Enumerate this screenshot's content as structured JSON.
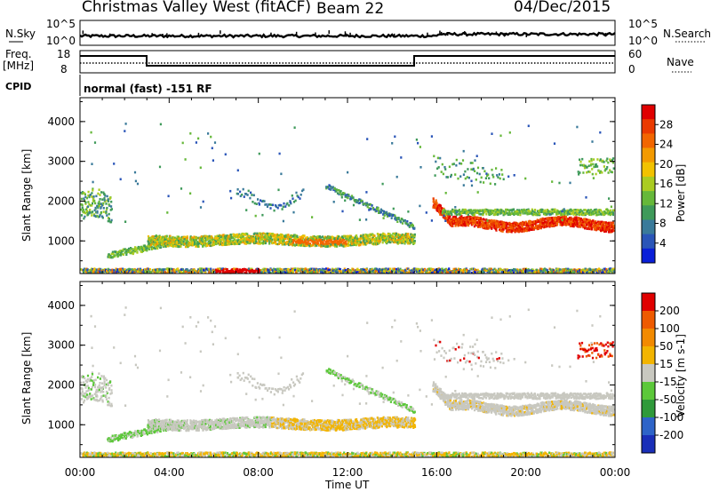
{
  "header": {
    "station": "Christmas Valley West (fitACF)",
    "beam": "Beam 22",
    "date": "04/Dec/2015"
  },
  "top_panels": {
    "nsky_label": "N.Sky",
    "nsearch_label": "N.Search",
    "nsky_ticks": [
      "10^5",
      "10^0"
    ],
    "nsearch_ticks": [
      "10^5",
      "10^0"
    ],
    "freq_label": "Freq.",
    "freq_unit": "[MHz]",
    "freq_ticks": [
      "18",
      "8"
    ],
    "nave_label": "Nave",
    "nave_ticks": [
      "60",
      "0"
    ],
    "cpid_label": "CPID",
    "cpid_text": "normal (fast) -151 RF"
  },
  "chart_data": [
    {
      "type": "heatmap",
      "panel": "power",
      "ylabel": "Slant Range [km]",
      "yticks": [
        "4000",
        "3000",
        "2000",
        "1000"
      ],
      "ylim": [
        180,
        4600
      ],
      "xlim": [
        0,
        24
      ],
      "colorbar": {
        "label": "Power [dB]",
        "ticks": [
          "28",
          "24",
          "20",
          "16",
          "12",
          "8",
          "4"
        ],
        "colors": [
          "#0a1fd8",
          "#2a55b8",
          "#3a7a9a",
          "#3f9a5a",
          "#66b83a",
          "#aacc22",
          "#f2c200",
          "#f39a00",
          "#f26600",
          "#ea3a00",
          "#e00000"
        ]
      }
    },
    {
      "type": "heatmap",
      "panel": "velocity",
      "ylabel": "Slant Range [km]",
      "yticks": [
        "4000",
        "3000",
        "2000",
        "1000"
      ],
      "ylim": [
        180,
        4600
      ],
      "xlim": [
        0,
        24
      ],
      "xlabel": "Time UT",
      "xticks": [
        "00:00",
        "04:00",
        "08:00",
        "12:00",
        "16:00",
        "20:00",
        "00:00"
      ],
      "colorbar": {
        "label": "Velocity [m s-1]",
        "ticks": [
          "200",
          "100",
          "50",
          "15",
          "-15",
          "-50",
          "-100",
          "-200"
        ],
        "colors": [
          "#1a2fb8",
          "#2e64c8",
          "#2f9a3a",
          "#5cc83a",
          "#c8c8c0",
          "#f2b400",
          "#f28a00",
          "#ee5a00",
          "#e00000"
        ]
      }
    }
  ]
}
